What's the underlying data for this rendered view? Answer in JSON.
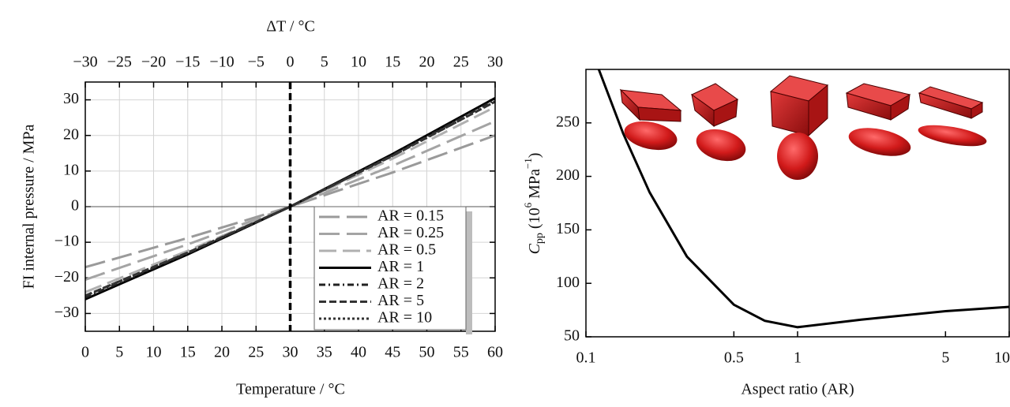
{
  "chart_data": [
    {
      "type": "line",
      "title": "ΔT / °C",
      "xlabel": "Temperature / °C",
      "ylabel": "FI internal pressure / MPa",
      "x": [
        0,
        15,
        30,
        45,
        60
      ],
      "xlim": [
        0,
        60
      ],
      "xticks": [
        0,
        5,
        10,
        15,
        20,
        25,
        30,
        35,
        40,
        45,
        50,
        55,
        60
      ],
      "x2lim": [
        -30,
        30
      ],
      "x2ticks": [
        {
          "value": -30,
          "label": "−30"
        },
        {
          "value": -25,
          "label": "−25"
        },
        {
          "value": -20,
          "label": "−20"
        },
        {
          "value": -15,
          "label": "−15"
        },
        {
          "value": -10,
          "label": "−10"
        },
        {
          "value": -5,
          "label": "−5"
        },
        0,
        5,
        10,
        15,
        20,
        25,
        30
      ],
      "ylim": [
        -35,
        35
      ],
      "yticks": [
        {
          "value": -30,
          "label": "−30"
        },
        {
          "value": -20,
          "label": "−20"
        },
        {
          "value": -10,
          "label": "−10"
        },
        0,
        10,
        20,
        30
      ],
      "grid": true,
      "vline": 30,
      "hline": 0,
      "legend": "lower right",
      "series": [
        {
          "name": "AR = 0.15",
          "color": "#9a9a9a",
          "dash": "26 9",
          "values": [
            -17,
            -8.8,
            0,
            9.6,
            20
          ]
        },
        {
          "name": "AR = 0.25",
          "color": "#a4a4a4",
          "dash": "26 9",
          "values": [
            -20.5,
            -10.6,
            0,
            11.5,
            24
          ]
        },
        {
          "name": "AR = 0.5",
          "color": "#b0b0b0",
          "dash": "22 8",
          "values": [
            -24,
            -12.4,
            0,
            13.5,
            28
          ]
        },
        {
          "name": "AR = 1",
          "color": "#000000",
          "dash": "none",
          "values": [
            -26,
            -13.4,
            0,
            14.8,
            30.5
          ]
        },
        {
          "name": "AR = 2",
          "color": "#222222",
          "dash": "8 4 2 4",
          "values": [
            -25.5,
            -13.1,
            0,
            14.5,
            30
          ]
        },
        {
          "name": "AR = 5",
          "color": "#333333",
          "dash": "9 4",
          "values": [
            -25,
            -12.9,
            0,
            14.3,
            29.5
          ]
        },
        {
          "name": "AR = 10",
          "color": "#333333",
          "dash": "3 3",
          "values": [
            -25,
            -12.9,
            0,
            14.3,
            29.5
          ]
        }
      ]
    },
    {
      "type": "line",
      "xlabel": "Aspect ratio (AR)",
      "ylabel": [
        "C",
        "pp",
        " (10",
        "6",
        " MPa",
        "−1",
        ")"
      ],
      "xscale": "log",
      "x": [
        0.115,
        0.15,
        0.2,
        0.3,
        0.5,
        0.7,
        1,
        2,
        5,
        10
      ],
      "xlim": [
        0.1,
        10
      ],
      "xticks": [
        0.1,
        0.5,
        1,
        5,
        10
      ],
      "ylim": [
        50,
        300
      ],
      "yticks": [
        50,
        100,
        150,
        200,
        250
      ],
      "grid": false,
      "series": [
        {
          "color": "#000000",
          "dash": "none",
          "values": [
            300,
            240,
            185,
            125,
            80,
            65,
            59,
            66,
            74,
            78
          ]
        }
      ]
    }
  ]
}
